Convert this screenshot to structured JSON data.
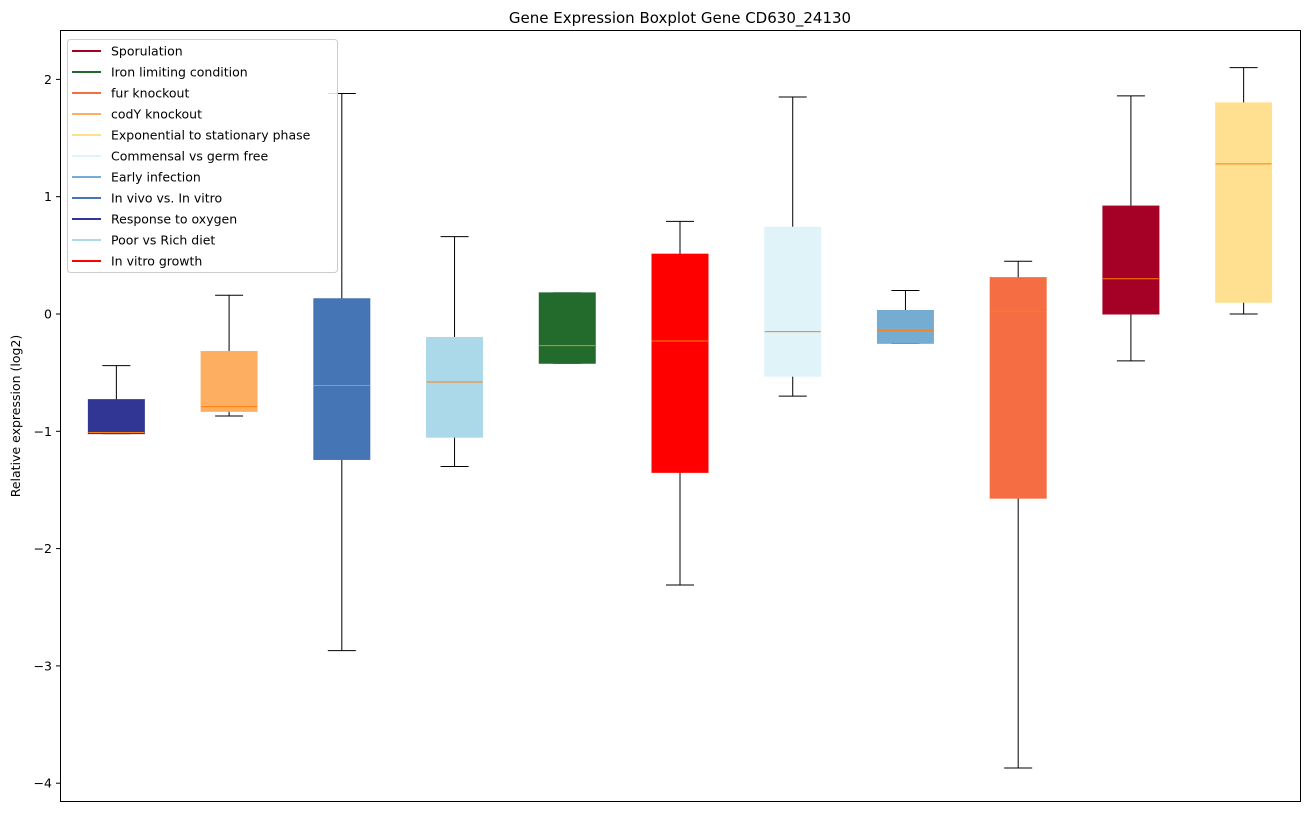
{
  "chart_data": {
    "type": "boxplot",
    "title": "Gene Expression Boxplot Gene CD630_24130",
    "xlabel": "",
    "ylabel": "Relative expression (log2)",
    "ylim": [
      -4.1,
      2.4
    ],
    "yticks": [
      2,
      1,
      0,
      -1,
      -2,
      -3,
      -4
    ],
    "ytick_labels": [
      "2",
      "1",
      "0",
      "−1",
      "−2",
      "−3",
      "−4"
    ],
    "grid": false,
    "legend_position": "top-left",
    "legend": [
      {
        "label": "Sporulation",
        "color": "#a50026"
      },
      {
        "label": "Iron limiting condition",
        "color": "#236b2c"
      },
      {
        "label": "fur knockout",
        "color": "#f46d43"
      },
      {
        "label": "codY knockout",
        "color": "#fdae61"
      },
      {
        "label": "Exponential to stationary phase",
        "color": "#fee090"
      },
      {
        "label": "Commensal vs germ free",
        "color": "#e0f3f8"
      },
      {
        "label": "Early infection",
        "color": "#74add1"
      },
      {
        "label": "In vivo vs. In vitro",
        "color": "#4575b4"
      },
      {
        "label": "Response to oxygen",
        "color": "#313695"
      },
      {
        "label": "Poor vs Rich diet",
        "color": "#abd9e9"
      },
      {
        "label": "In vitro growth",
        "color": "#ff0000"
      }
    ],
    "boxes": [
      {
        "group": "Response to oxygen",
        "color": "#313695",
        "whislo": -1.02,
        "q1": -1.02,
        "median": -1.01,
        "q3": -0.73,
        "whishi": -0.44
      },
      {
        "group": "codY knockout",
        "color": "#fdae61",
        "whislo": -0.87,
        "q1": -0.83,
        "median": -0.79,
        "q3": -0.32,
        "whishi": 0.16
      },
      {
        "group": "In vivo vs. In vitro",
        "color": "#4575b4",
        "whislo": -2.87,
        "q1": -1.24,
        "median": -0.61,
        "q3": 0.13,
        "whishi": 1.88
      },
      {
        "group": "Poor vs Rich diet",
        "color": "#abd9e9",
        "whislo": -1.3,
        "q1": -1.05,
        "median": -0.58,
        "q3": -0.2,
        "whishi": 0.66
      },
      {
        "group": "Iron limiting condition",
        "color": "#236b2c",
        "whislo": -0.42,
        "q1": -0.42,
        "median": -0.27,
        "q3": 0.18,
        "whishi": 0.18
      },
      {
        "group": "In vitro growth",
        "color": "#ff0000",
        "whislo": -2.31,
        "q1": -1.35,
        "median": -0.23,
        "q3": 0.51,
        "whishi": 0.79
      },
      {
        "group": "Commensal vs germ free",
        "color": "#e0f3f8",
        "whislo": -0.7,
        "q1": -0.53,
        "median": -0.15,
        "q3": 0.74,
        "whishi": 1.85
      },
      {
        "group": "Early infection",
        "color": "#74add1",
        "whislo": -0.25,
        "q1": -0.25,
        "median": -0.14,
        "q3": 0.03,
        "whishi": 0.2
      },
      {
        "group": "fur knockout",
        "color": "#f46d43",
        "whislo": -3.87,
        "q1": -1.57,
        "median": 0.02,
        "q3": 0.31,
        "whishi": 0.45
      },
      {
        "group": "Sporulation",
        "color": "#a50026",
        "whislo": -0.4,
        "q1": 0.0,
        "median": 0.3,
        "q3": 0.92,
        "whishi": 1.86
      },
      {
        "group": "Exponential to stationary phase",
        "color": "#fee090",
        "whislo": 0.0,
        "q1": 0.1,
        "median": 1.28,
        "q3": 1.8,
        "whishi": 2.1
      }
    ],
    "median_color": "#ff7f0e"
  }
}
